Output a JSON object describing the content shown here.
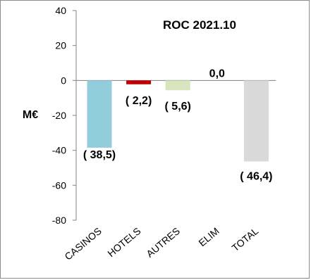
{
  "chart_data": {
    "type": "bar",
    "title": "ROC 2021.10",
    "ylabel": "M€",
    "xlabel": "",
    "ylim": [
      -80,
      40
    ],
    "yticks": [
      40,
      20,
      0,
      -20,
      -40,
      -60,
      -80
    ],
    "ytick_labels": [
      "40",
      "20",
      "0",
      "-20",
      "-40",
      "-60",
      "-80"
    ],
    "categories": [
      "CASINOS",
      "HOTELS",
      "AUTRES",
      "ELIM",
      "TOTAL"
    ],
    "values": [
      -38.5,
      -2.2,
      -5.6,
      0.0,
      -46.4
    ],
    "data_labels": [
      "( 38,5)",
      "( 2,2)",
      "( 5,6)",
      "0,0",
      "( 46,4)"
    ],
    "colors": [
      "#92cddc",
      "#c00000",
      "#d7e4bd",
      "#d9d9d9",
      "#d9d9d9"
    ],
    "grid": false,
    "legend": "none"
  }
}
